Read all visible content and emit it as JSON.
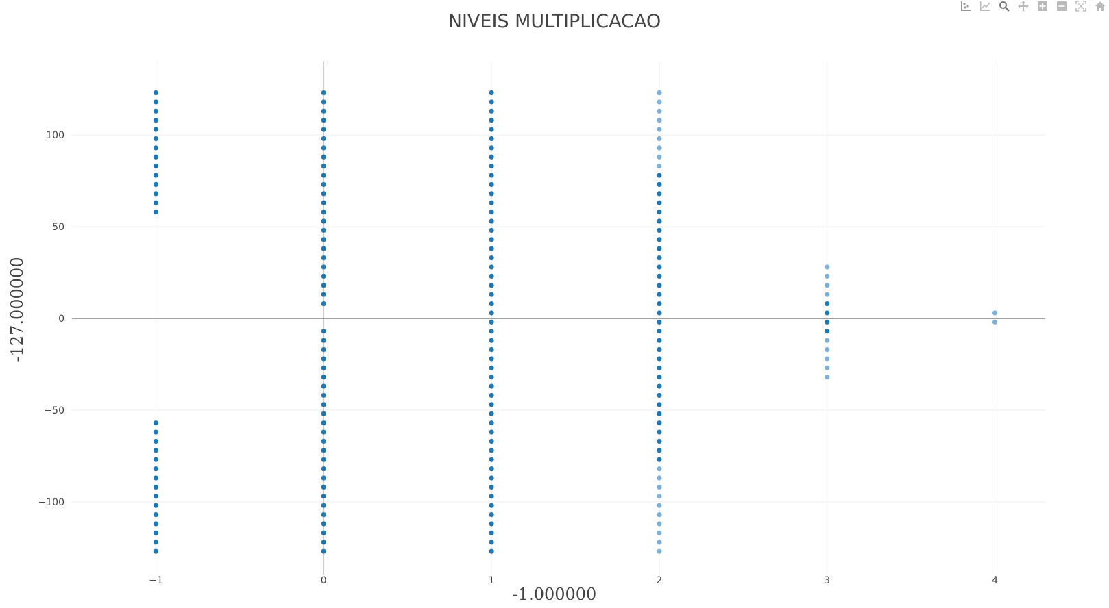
{
  "chart_data": {
    "type": "scatter",
    "title": "NIVEIS MULTIPLICACAO",
    "xlabel": "-1.000000",
    "ylabel": "-127.000000",
    "xlim": [
      -1.5,
      4.3
    ],
    "ylim": [
      -140,
      140
    ],
    "x_ticks": [
      -1,
      0,
      1,
      2,
      3,
      4
    ],
    "x_tick_labels": [
      "−1",
      "0",
      "1",
      "2",
      "3",
      "4"
    ],
    "y_ticks": [
      -100,
      -50,
      0,
      50,
      100
    ],
    "y_tick_labels": [
      "−100",
      "−50",
      "0",
      "50",
      "100"
    ],
    "grid": true,
    "zero_lines": true,
    "colors": {
      "dark": "#1f77b4",
      "light": "#7fb0d8"
    },
    "columns": [
      {
        "x": -1,
        "segments": [
          {
            "from": -127,
            "to": -57,
            "step": 5,
            "shade": "dark"
          },
          {
            "from": 58,
            "to": 123,
            "step": 5,
            "shade": "dark"
          }
        ]
      },
      {
        "x": 0,
        "segments": [
          {
            "from": -127,
            "to": -7,
            "step": 5,
            "shade": "dark"
          },
          {
            "from": 8,
            "to": 123,
            "step": 5,
            "shade": "dark"
          }
        ]
      },
      {
        "x": 1,
        "segments": [
          {
            "from": -127,
            "to": 123,
            "step": 5,
            "shade": "dark"
          }
        ]
      },
      {
        "x": 2,
        "segments": [
          {
            "from": -127,
            "to": -82,
            "step": 5,
            "shade": "light"
          },
          {
            "from": -77,
            "to": 78,
            "step": 5,
            "shade": "dark"
          },
          {
            "from": 83,
            "to": 123,
            "step": 5,
            "shade": "light"
          }
        ]
      },
      {
        "x": 3,
        "segments": [
          {
            "from": -32,
            "to": -12,
            "step": 5,
            "shade": "light"
          },
          {
            "from": -7,
            "to": 8,
            "step": 5,
            "shade": "dark"
          },
          {
            "from": 13,
            "to": 28,
            "step": 5,
            "shade": "light"
          }
        ]
      },
      {
        "x": 4,
        "segments": [
          {
            "from": -2,
            "to": 3,
            "step": 5,
            "shade": "light"
          }
        ]
      }
    ]
  },
  "modebar": {
    "icons": [
      "compare-data-icon",
      "spike-lines-icon",
      "zoom-icon",
      "pan-icon",
      "zoom-in-icon",
      "zoom-out-icon",
      "autoscale-icon",
      "reset-axes-icon"
    ]
  }
}
